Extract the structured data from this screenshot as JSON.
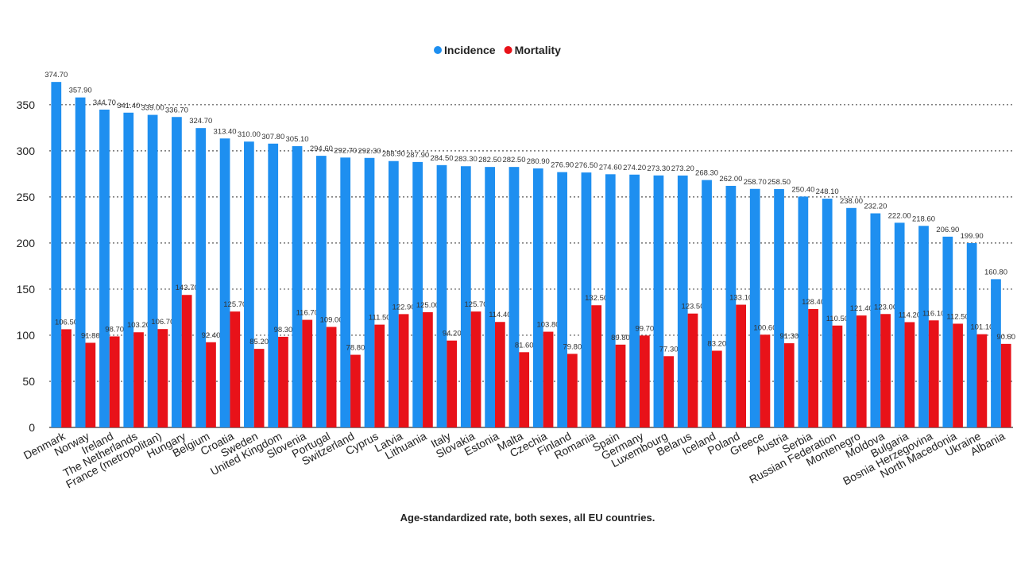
{
  "chart_data": {
    "type": "bar",
    "subtitle": "Age-standardized rate, both sexes, all EU countries.",
    "categories": [
      "Denmark",
      "Norway",
      "Ireland",
      "The Netherlands",
      "France (metropolitan)",
      "Hungary",
      "Belgium",
      "Croatia",
      "Sweden",
      "United Kingdom",
      "Slovenia",
      "Portugal",
      "Switzerland",
      "Cyprus",
      "Latvia",
      "Lithuania",
      "Italy",
      "Slovakia",
      "Estonia",
      "Malta",
      "Czechia",
      "Finland",
      "Romania",
      "Spain",
      "Germany",
      "Luxembourg",
      "Belarus",
      "Iceland",
      "Poland",
      "Greece",
      "Austria",
      "Serbia",
      "Russian Federation",
      "Montenegro",
      "Moldova",
      "Bulgaria",
      "Bosnia Herzegovina",
      "North Macedonia",
      "Ukraine",
      "Albania"
    ],
    "series": [
      {
        "name": "Incidence",
        "color": "#1e8ff0",
        "values": [
          374.7,
          357.9,
          344.7,
          341.4,
          339.0,
          336.7,
          324.7,
          313.4,
          310.0,
          307.8,
          305.1,
          294.6,
          292.7,
          292.3,
          288.9,
          287.9,
          284.5,
          283.3,
          282.5,
          282.5,
          280.9,
          276.9,
          276.5,
          274.6,
          274.2,
          273.3,
          273.2,
          268.3,
          262.0,
          258.7,
          258.5,
          250.4,
          248.1,
          238.0,
          232.2,
          222.0,
          218.6,
          206.9,
          199.9,
          160.8
        ],
        "value_labels": [
          "374.70",
          "357.90",
          "344.70",
          "341.40",
          "339.00",
          "336.70",
          "324.70",
          "313.40",
          "310.00",
          "307.80",
          "305.10",
          "294.60",
          "292.70",
          "292.30",
          "288.90",
          "287.90",
          "284.50",
          "283.30",
          "282.50",
          "282.50",
          "280.90",
          "276.90",
          "276.50",
          "274.60",
          "274.20",
          "273.30",
          "273.20",
          "268.30",
          "262.00",
          "258.70",
          "258.50",
          "250.40",
          "248.10",
          "238.00",
          "232.20",
          "222.00",
          "218.60",
          "206.90",
          "199.90",
          "160.80"
        ]
      },
      {
        "name": "Mortality",
        "color": "#e81219",
        "values": [
          106.5,
          91.8,
          98.7,
          103.2,
          106.7,
          143.7,
          92.4,
          125.7,
          85.2,
          98.3,
          116.7,
          109.0,
          78.8,
          111.5,
          122.9,
          125.0,
          94.2,
          125.7,
          114.4,
          81.6,
          103.8,
          79.8,
          132.5,
          89.8,
          99.7,
          77.3,
          123.5,
          83.2,
          133.1,
          100.6,
          91.3,
          128.4,
          110.5,
          121.4,
          123.0,
          114.2,
          116.1,
          112.5,
          101.1,
          90.6
        ],
        "value_labels": [
          "106.50",
          "91.80",
          "98.70",
          "103.20",
          "106.70",
          "143.70",
          "92.40",
          "125.70",
          "85.20",
          "98.30",
          "116.70",
          "109.00",
          "78.80",
          "111.50",
          "122.90",
          "125.00",
          "94.20",
          "125.70",
          "114.40",
          "81.60",
          "103.80",
          "79.80",
          "132.50",
          "89.80",
          "99.70",
          "77.30",
          "123.50",
          "83.20",
          "133.10",
          "100.60",
          "91.30",
          "128.40",
          "110.50",
          "121.40",
          "123.00",
          "114.20",
          "116.10",
          "112.50",
          "101.10",
          "90.60"
        ]
      }
    ],
    "ylim": [
      0,
      380
    ],
    "yticks": [
      0,
      50,
      100,
      150,
      200,
      250,
      300,
      350
    ],
    "grid": true
  }
}
